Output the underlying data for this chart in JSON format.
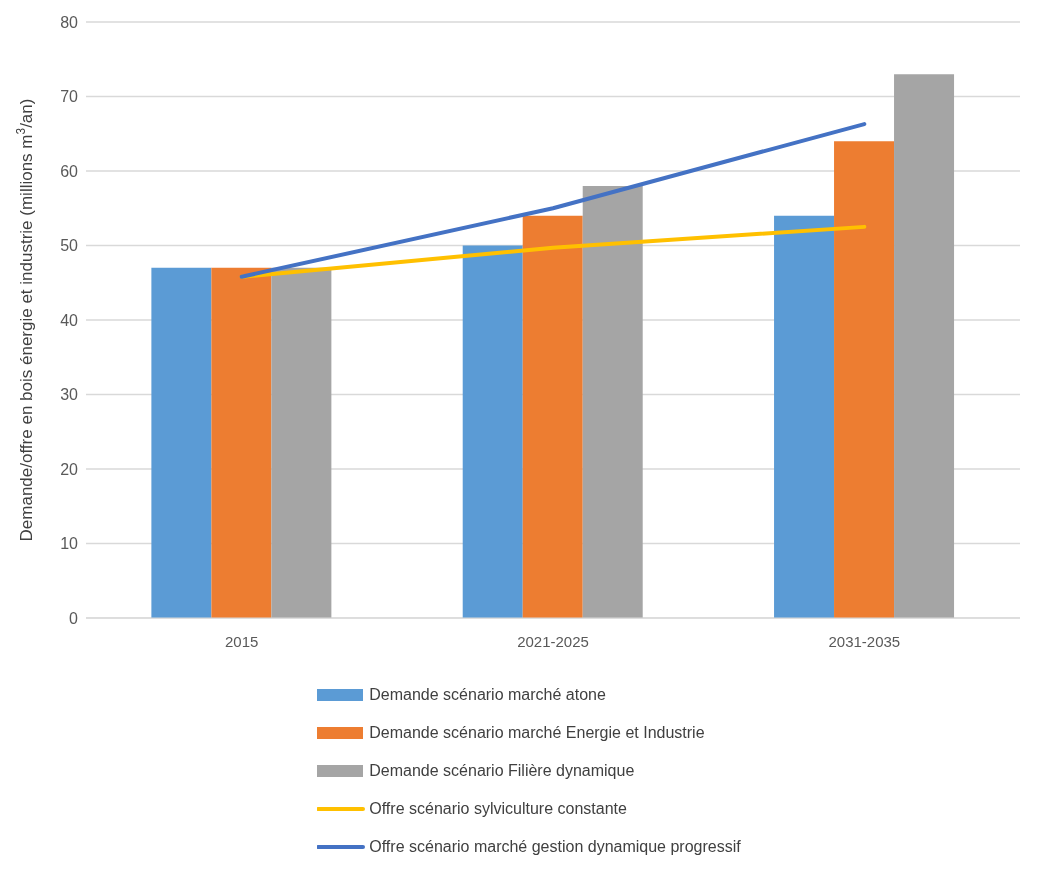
{
  "chart_data": {
    "type": "bar",
    "ylabel": "Demande/offre en bois énergie et industrie (millions m$^{3}$/an)",
    "categories": [
      "2015",
      "2021-2025",
      "2031-2035"
    ],
    "series": [
      {
        "name": "Demande scénario marché atone",
        "color": "#5b9bd5",
        "values": [
          47,
          50,
          54
        ]
      },
      {
        "name": "Demande scénario marché Energie et Industrie",
        "color": "#ed7d31",
        "values": [
          47,
          54,
          64
        ]
      },
      {
        "name": "Demande scénario Filière dynamique",
        "color": "#a5a5a5",
        "values": [
          47,
          58,
          73
        ]
      },
      {
        "name": "Offre scénario sylviculture constante",
        "type": "line",
        "color": "#ffc000",
        "values": [
          45.8,
          49.7,
          52.5
        ]
      },
      {
        "name": "Offre scénario marché gestion dynamique progressif",
        "type": "line",
        "color": "#4472c4",
        "values": [
          45.8,
          55,
          66.3
        ]
      }
    ],
    "ylim": [
      0,
      80
    ],
    "yticks": [
      0,
      10,
      20,
      30,
      40,
      50,
      60,
      70,
      80
    ],
    "grid": "y",
    "legend": "bottom",
    "marker": "none"
  }
}
